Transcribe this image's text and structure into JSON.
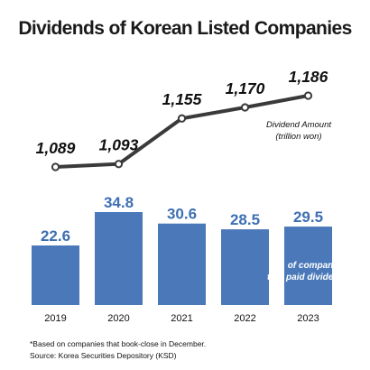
{
  "title": "Dividends of Korean Listed Companies",
  "footnotes": [
    "*Based on companies that book-close in December.",
    "Source: Korea Securities Depository (KSD)"
  ],
  "colors": {
    "bar": "#4a78b8",
    "bar_value": "#3d6fb3",
    "line": "#3a3a3a",
    "text": "#111111"
  },
  "chart_data": [
    {
      "type": "line",
      "x": [
        "2019",
        "2020",
        "2021",
        "2022",
        "2023"
      ],
      "series": [
        {
          "name": "Dividend Amount\n(trillion won)",
          "values": [
            1089,
            1093,
            1155,
            1170,
            1186
          ],
          "labels": [
            "1,089",
            "1,093",
            "1,155",
            "1,170",
            "1,186"
          ]
        }
      ],
      "legend": "right of last point",
      "grid": false
    },
    {
      "type": "bar",
      "categories": [
        "2019",
        "2020",
        "2021",
        "2022",
        "2023"
      ],
      "series": [
        {
          "name": "No. of companies\nthat paid dividends",
          "values": [
            22.6,
            34.8,
            30.6,
            28.5,
            29.5
          ]
        }
      ],
      "legend": "inside last bar",
      "grid": false
    }
  ]
}
